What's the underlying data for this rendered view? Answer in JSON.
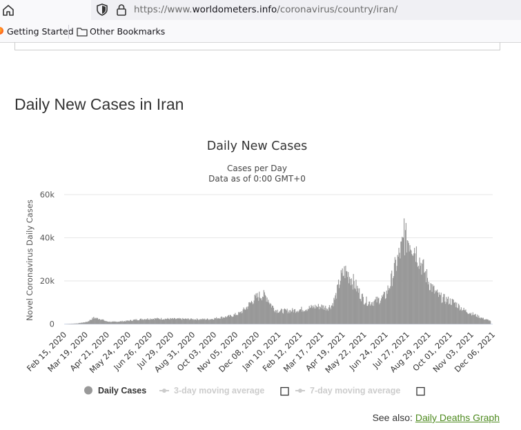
{
  "browser": {
    "url_scheme": "https://www.",
    "url_host": "worldometers.info",
    "url_path": "/coronavirus/country/iran/",
    "bookmarks": [
      "Getting Started",
      "Other Bookmarks"
    ]
  },
  "page": {
    "section_title": "Daily New Cases in Iran",
    "see_also_label": "See also:",
    "see_also_link": "Daily Deaths Graph"
  },
  "chart_data": {
    "type": "bar",
    "title": "Daily New Cases",
    "subtitle_lines": [
      "Cases per Day",
      "Data as of 0:00 GMT+0"
    ],
    "xlabel": "",
    "ylabel": "Novel Coronavirus Daily Cases",
    "ylim": [
      0,
      60000
    ],
    "y_ticks": [
      0,
      20000,
      40000,
      60000
    ],
    "y_tick_labels": [
      "0",
      "20k",
      "40k",
      "60k"
    ],
    "x_tick_labels": [
      "Feb 15, 2020",
      "Mar 19, 2020",
      "Apr 21, 2020",
      "May 24, 2020",
      "Jun 26, 2020",
      "Jul 29, 2020",
      "Aug 31, 2020",
      "Oct 03, 2020",
      "Nov 05, 2020",
      "Dec 08, 2020",
      "Jan 10, 2021",
      "Feb 12, 2021",
      "Mar 17, 2021",
      "Apr 19, 2021",
      "May 22, 2021",
      "Jun 24, 2021",
      "Jul 27, 2021",
      "Aug 29, 2021",
      "Oct 01, 2021",
      "Nov 03, 2021",
      "Dec 06, 2021"
    ],
    "x_tick_spacing_days": 33,
    "first_date": "Feb 15, 2020",
    "series": [
      {
        "name": "Daily Cases",
        "color": "#999999",
        "profile_points": [
          [
            0,
            0
          ],
          [
            20,
            300
          ],
          [
            35,
            1000
          ],
          [
            45,
            2900
          ],
          [
            55,
            2400
          ],
          [
            65,
            1200
          ],
          [
            75,
            1000
          ],
          [
            95,
            1400
          ],
          [
            110,
            2000
          ],
          [
            125,
            2400
          ],
          [
            140,
            2500
          ],
          [
            160,
            2400
          ],
          [
            190,
            2300
          ],
          [
            210,
            2200
          ],
          [
            225,
            2300
          ],
          [
            240,
            3000
          ],
          [
            255,
            3600
          ],
          [
            270,
            5000
          ],
          [
            280,
            7500
          ],
          [
            290,
            11000
          ],
          [
            298,
            12800
          ],
          [
            305,
            13500
          ],
          [
            312,
            12500
          ],
          [
            318,
            9000
          ],
          [
            325,
            6500
          ],
          [
            335,
            6000
          ],
          [
            350,
            6200
          ],
          [
            370,
            7000
          ],
          [
            385,
            8000
          ],
          [
            395,
            8200
          ],
          [
            405,
            7500
          ],
          [
            412,
            8800
          ],
          [
            418,
            13000
          ],
          [
            425,
            21000
          ],
          [
            432,
            24500
          ],
          [
            440,
            22000
          ],
          [
            448,
            18000
          ],
          [
            455,
            14000
          ],
          [
            462,
            11000
          ],
          [
            470,
            10000
          ],
          [
            478,
            10500
          ],
          [
            486,
            11500
          ],
          [
            494,
            13000
          ],
          [
            502,
            19000
          ],
          [
            510,
            27000
          ],
          [
            518,
            34000
          ],
          [
            524,
            39000
          ],
          [
            530,
            39500
          ],
          [
            534,
            38000
          ],
          [
            540,
            35000
          ],
          [
            548,
            29000
          ],
          [
            555,
            24000
          ],
          [
            562,
            19000
          ],
          [
            570,
            15000
          ],
          [
            578,
            12500
          ],
          [
            590,
            11000
          ],
          [
            600,
            10000
          ],
          [
            615,
            6500
          ],
          [
            630,
            4500
          ],
          [
            645,
            2500
          ],
          [
            656,
            1500
          ]
        ],
        "spike": [
          523,
          49000
        ]
      }
    ],
    "legend": [
      {
        "label": "Daily Cases",
        "enabled": true
      },
      {
        "label": "3-day moving average",
        "enabled": false
      },
      {
        "label": "7-day moving average",
        "enabled": false
      }
    ],
    "legend_placement": "bottom",
    "grid": true
  }
}
